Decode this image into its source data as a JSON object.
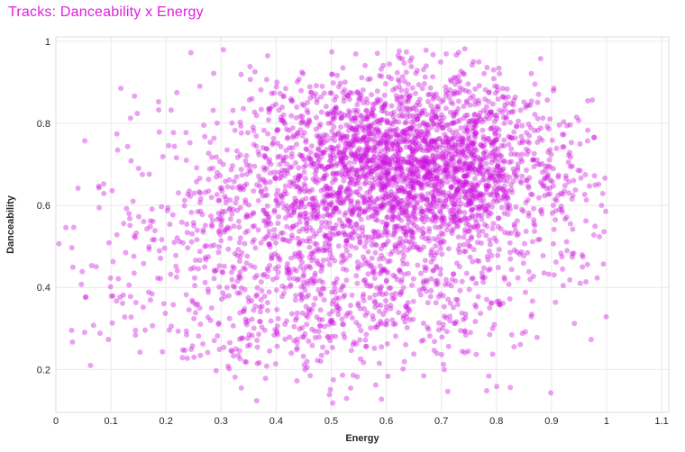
{
  "page": {
    "background": "#ffffff"
  },
  "chart_data": {
    "type": "scatter",
    "title": "Tracks: Danceability x Energy",
    "title_color": "#e020e0",
    "xlabel": "Energy",
    "ylabel": "Danceability",
    "x_axis_range": [
      0,
      1.113
    ],
    "y_axis_range": [
      0.0955,
      1.0105
    ],
    "x_ticks": [
      {
        "v": 0,
        "label": "0"
      },
      {
        "v": 0.1,
        "label": "0.1"
      },
      {
        "v": 0.2,
        "label": "0.2"
      },
      {
        "v": 0.3,
        "label": "0.3"
      },
      {
        "v": 0.4,
        "label": "0.4"
      },
      {
        "v": 0.5,
        "label": "0.5"
      },
      {
        "v": 0.6,
        "label": "0.6"
      },
      {
        "v": 0.7,
        "label": "0.7"
      },
      {
        "v": 0.8,
        "label": "0.8"
      },
      {
        "v": 0.9,
        "label": "0.9"
      },
      {
        "v": 1,
        "label": "1"
      },
      {
        "v": 1.1,
        "label": "1.1"
      }
    ],
    "y_ticks": [
      {
        "v": 0.2,
        "label": "0.2"
      },
      {
        "v": 0.4,
        "label": "0.4"
      },
      {
        "v": 0.6,
        "label": "0.6"
      },
      {
        "v": 0.8,
        "label": "0.8"
      },
      {
        "v": 1,
        "label": "1"
      }
    ],
    "grid": true,
    "legend": "none",
    "marks": {
      "color": "#cc15df",
      "opacity": 0.4,
      "radius": 3
    },
    "points": {
      "count": 3800,
      "seed": 7,
      "x_range": [
        0.003,
        1.0
      ],
      "y_range": [
        0.115,
        0.985
      ],
      "gaussian_mixture": [
        {
          "weight": 0.48,
          "mean_x": 0.66,
          "mean_y": 0.72,
          "sd_x": 0.13,
          "sd_y": 0.1,
          "rho": -0.1
        },
        {
          "weight": 0.3,
          "mean_x": 0.56,
          "mean_y": 0.6,
          "sd_x": 0.2,
          "sd_y": 0.15,
          "rho": 0
        },
        {
          "weight": 0.16,
          "mean_x": 0.48,
          "mean_y": 0.46,
          "sd_x": 0.22,
          "sd_y": 0.12,
          "rho": 0
        },
        {
          "weight": 0.06,
          "mean_x": 0.46,
          "mean_y": 0.3,
          "sd_x": 0.21,
          "sd_y": 0.085,
          "rho": 0
        }
      ]
    },
    "colors": {
      "grid": "#e9e9e9",
      "border": "#dcdcdc",
      "tick_label": "#262626",
      "axis_title": "#262626"
    }
  }
}
